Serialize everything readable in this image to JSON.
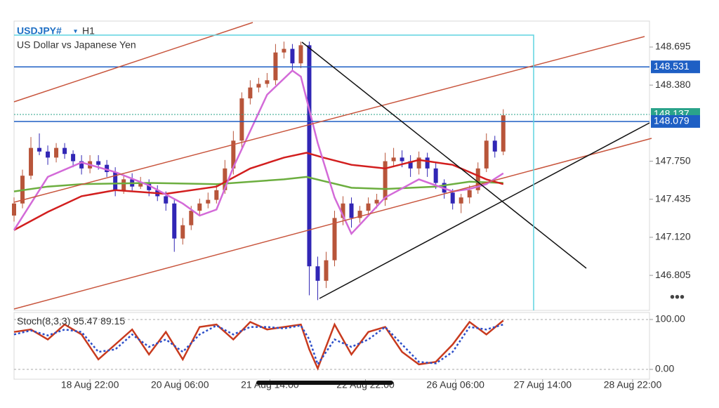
{
  "chart_data": [
    {
      "type": "candlestick",
      "title": "USDJPY#",
      "timeframe": "H1",
      "subtitle": "US Dollar vs Japanese Yen",
      "up_color": "#b8553a",
      "down_color": "#3126b5",
      "x": [
        0,
        3,
        6,
        9,
        12,
        15,
        18,
        21,
        24,
        27,
        30,
        33,
        36,
        39,
        42,
        45,
        48,
        51,
        54,
        57,
        60,
        63,
        66,
        69,
        72,
        75,
        78,
        81,
        84,
        87,
        90,
        93,
        96,
        99,
        102,
        105,
        108,
        111,
        114,
        117,
        120,
        123,
        126,
        129,
        132,
        135,
        138,
        141,
        144,
        147,
        150,
        153,
        156,
        159,
        162,
        165,
        168,
        171,
        174
      ],
      "open": [
        147.3,
        147.4,
        147.63,
        147.86,
        147.83,
        147.78,
        147.86,
        147.81,
        147.75,
        147.69,
        147.75,
        147.72,
        147.66,
        147.51,
        147.6,
        147.54,
        147.57,
        147.51,
        147.46,
        147.4,
        147.11,
        147.22,
        147.34,
        147.4,
        147.43,
        147.51,
        147.69,
        147.92,
        148.27,
        148.36,
        148.39,
        148.42,
        148.65,
        148.68,
        148.56,
        148.71,
        146.88,
        146.76,
        146.93,
        147.28,
        147.4,
        147.28,
        147.34,
        147.4,
        147.43,
        147.75,
        147.78,
        147.75,
        147.69,
        147.78,
        147.69,
        147.57,
        147.49,
        147.4,
        147.45,
        147.51,
        147.69,
        147.92,
        147.83
      ],
      "high": [
        147.45,
        147.68,
        147.95,
        147.98,
        147.88,
        147.9,
        147.9,
        147.84,
        147.8,
        147.8,
        147.8,
        147.76,
        147.7,
        147.64,
        147.65,
        147.62,
        147.6,
        147.55,
        147.5,
        147.44,
        147.28,
        147.38,
        147.44,
        147.49,
        147.56,
        147.76,
        148.0,
        148.32,
        148.42,
        148.44,
        148.48,
        148.72,
        148.74,
        148.72,
        148.74,
        148.74,
        146.96,
        147.0,
        147.34,
        147.46,
        147.45,
        147.38,
        147.45,
        147.48,
        147.82,
        147.86,
        147.84,
        147.8,
        147.83,
        147.82,
        147.74,
        147.6,
        147.52,
        147.48,
        147.55,
        147.74,
        147.98,
        147.96,
        148.18
      ],
      "low": [
        147.25,
        147.36,
        147.6,
        147.8,
        147.72,
        147.74,
        147.77,
        147.7,
        147.64,
        147.65,
        147.68,
        147.62,
        147.46,
        147.48,
        147.5,
        147.52,
        147.46,
        147.42,
        147.34,
        147.0,
        147.06,
        147.18,
        147.3,
        147.36,
        147.4,
        147.48,
        147.64,
        147.86,
        148.22,
        148.32,
        148.36,
        148.38,
        148.6,
        148.5,
        148.52,
        146.64,
        146.6,
        146.7,
        146.88,
        147.22,
        147.2,
        147.24,
        147.3,
        147.36,
        147.38,
        147.7,
        147.7,
        147.62,
        147.64,
        147.62,
        147.52,
        147.44,
        147.35,
        147.32,
        147.4,
        147.48,
        147.66,
        147.78,
        147.8
      ],
      "close": [
        147.4,
        147.63,
        147.86,
        147.83,
        147.78,
        147.86,
        147.81,
        147.75,
        147.69,
        147.75,
        147.72,
        147.66,
        147.51,
        147.6,
        147.54,
        147.57,
        147.51,
        147.46,
        147.4,
        147.11,
        147.22,
        147.34,
        147.4,
        147.43,
        147.51,
        147.69,
        147.92,
        148.27,
        148.36,
        148.39,
        148.42,
        148.65,
        148.68,
        148.56,
        148.71,
        146.88,
        146.76,
        146.93,
        147.28,
        147.4,
        147.28,
        147.34,
        147.4,
        147.43,
        147.75,
        147.78,
        147.75,
        147.69,
        147.78,
        147.69,
        147.57,
        147.49,
        147.4,
        147.45,
        147.51,
        147.69,
        147.92,
        147.83,
        148.13
      ],
      "lines": [
        {
          "color": "#6cae3f",
          "x": [
            0,
            12,
            24,
            48,
            72,
            96,
            104,
            120,
            132,
            150,
            162,
            174
          ],
          "values": [
            147.5,
            147.54,
            147.56,
            147.57,
            147.56,
            147.6,
            147.62,
            147.53,
            147.52,
            147.54,
            147.58,
            147.57
          ]
        },
        {
          "color": "#d21e1e",
          "x": [
            0,
            12,
            24,
            36,
            54,
            72,
            84,
            96,
            104,
            110,
            120,
            132,
            144,
            156,
            168,
            174
          ],
          "values": [
            147.18,
            147.33,
            147.46,
            147.51,
            147.48,
            147.54,
            147.69,
            147.78,
            147.82,
            147.78,
            147.72,
            147.69,
            147.76,
            147.72,
            147.6,
            147.56
          ]
        },
        {
          "color": "#d36ad8",
          "x": [
            0,
            12,
            24,
            36,
            48,
            60,
            66,
            72,
            78,
            84,
            90,
            99,
            102,
            108,
            114,
            120,
            126,
            132,
            144,
            156,
            162,
            168,
            174
          ],
          "values": [
            147.18,
            147.62,
            147.74,
            147.66,
            147.55,
            147.4,
            147.3,
            147.35,
            147.7,
            148.0,
            148.3,
            148.5,
            148.45,
            147.9,
            147.45,
            147.15,
            147.3,
            147.45,
            147.6,
            147.5,
            147.52,
            147.56,
            147.65
          ]
        }
      ],
      "hlines": [
        {
          "value": 148.531,
          "color": "#1e5fc4"
        },
        {
          "value": 148.079,
          "color": "#1e5fc4"
        }
      ],
      "last_price": {
        "value": 148.137,
        "color": "#2aa38a"
      },
      "xlim": [
        0,
        226
      ],
      "ylim": [
        146.515,
        148.91
      ],
      "yticks": [
        148.695,
        {
          "value": 148.38,
          "label": "148.380"
        },
        {
          "value": 147.75,
          "label": "147.750"
        },
        147.435,
        {
          "value": 147.12,
          "label": "147.120"
        },
        146.805
      ],
      "xticks": [
        {
          "value": 27,
          "label": "18 Aug 22:00"
        },
        {
          "value": 59,
          "label": "20 Aug 06:00"
        },
        {
          "value": 91,
          "label": "21 Aug 14:00"
        },
        {
          "value": 125,
          "label": "22 Aug 22:00"
        },
        {
          "value": 157,
          "label": "26 Aug 06:00"
        },
        {
          "value": 188,
          "label": "27 Aug 14:00"
        },
        {
          "value": 220,
          "label": "28 Aug 22:00"
        }
      ]
    },
    {
      "type": "line",
      "title": "Stoch(8,3,3)",
      "main_value": 95.47,
      "signal_value": 89.15,
      "xlim": [
        0,
        226
      ],
      "ylim": [
        -19.7,
        114
      ],
      "yticks": [
        {
          "value": 100,
          "label": "100.00"
        },
        {
          "value": 0,
          "label": "0.00"
        }
      ],
      "series": [
        {
          "color": "#c83a1e",
          "dash": false,
          "x": [
            0,
            6,
            12,
            18,
            24,
            30,
            36,
            42,
            48,
            54,
            60,
            66,
            72,
            78,
            84,
            90,
            96,
            102,
            105,
            108,
            114,
            120,
            126,
            132,
            138,
            144,
            150,
            156,
            162,
            168,
            174
          ],
          "values": [
            75,
            80,
            60,
            90,
            70,
            20,
            50,
            80,
            30,
            75,
            20,
            85,
            90,
            60,
            95,
            80,
            85,
            90,
            40,
            2,
            90,
            30,
            75,
            85,
            35,
            10,
            15,
            50,
            95,
            70,
            98
          ]
        },
        {
          "color": "#2d4fc9",
          "dash": true,
          "x": [
            0,
            6,
            12,
            18,
            24,
            30,
            36,
            42,
            48,
            54,
            60,
            66,
            72,
            78,
            84,
            90,
            96,
            102,
            105,
            108,
            114,
            120,
            126,
            132,
            138,
            144,
            150,
            156,
            162,
            168,
            174
          ],
          "values": [
            70,
            78,
            68,
            80,
            75,
            35,
            40,
            70,
            45,
            60,
            35,
            70,
            88,
            70,
            85,
            85,
            82,
            88,
            60,
            10,
            60,
            45,
            60,
            85,
            50,
            15,
            12,
            35,
            85,
            80,
            90
          ]
        }
      ]
    }
  ]
}
